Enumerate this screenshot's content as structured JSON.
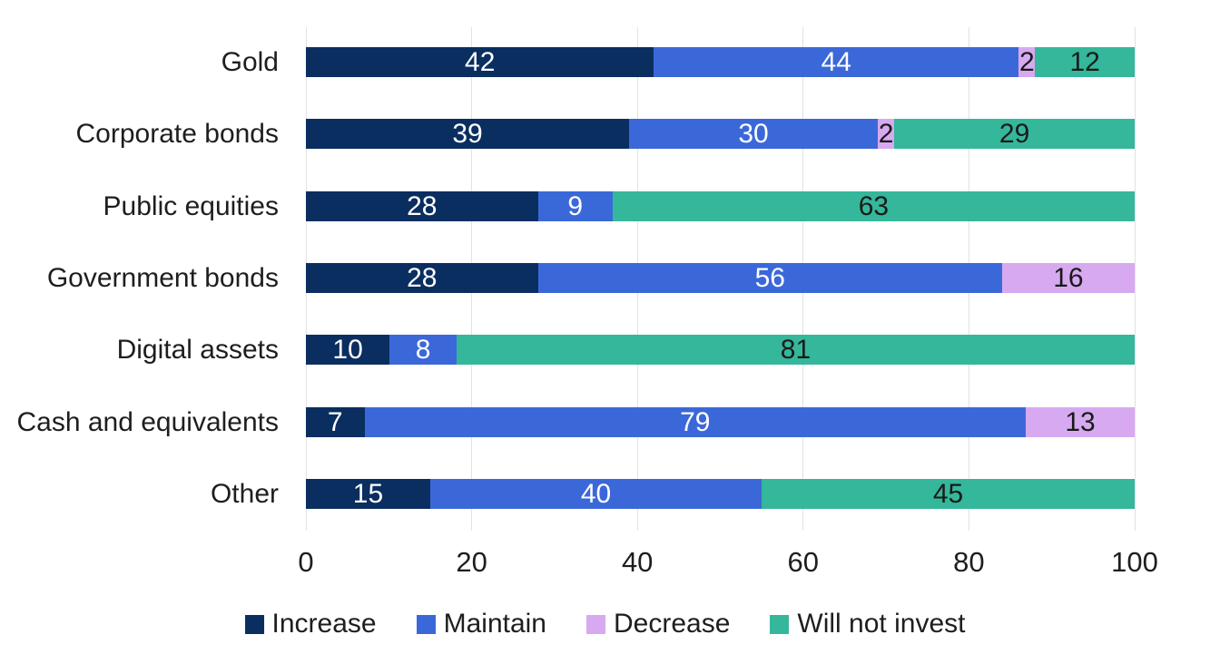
{
  "chart_data": {
    "type": "bar",
    "orientation": "horizontal",
    "stacked": true,
    "title": "",
    "xlabel": "",
    "ylabel": "",
    "xlim": [
      0,
      100
    ],
    "x_ticks": [
      "0",
      "20",
      "40",
      "60",
      "80",
      "100"
    ],
    "grid": "vertical",
    "legend_position": "bottom",
    "categories": [
      "Gold",
      "Corporate bonds",
      "Public equities",
      "Government bonds",
      "Digital assets",
      "Cash and equivalents",
      "Other"
    ],
    "series": [
      {
        "name": "Increase",
        "color": "#0b2e60",
        "label_color": "#ffffff",
        "values": [
          42,
          39,
          28,
          28,
          10,
          7,
          15
        ]
      },
      {
        "name": "Maintain",
        "color": "#3b68d9",
        "label_color": "#ffffff",
        "values": [
          44,
          30,
          9,
          56,
          8,
          79,
          40
        ]
      },
      {
        "name": "Decrease",
        "color": "#d7a9f1",
        "label_color": "#1a1a1a",
        "values": [
          2,
          2,
          0,
          16,
          0,
          13,
          0
        ]
      },
      {
        "name": "Will not invest",
        "color": "#34b79a",
        "label_color": "#1a1a1a",
        "values": [
          12,
          29,
          63,
          0,
          81,
          0,
          45
        ]
      }
    ],
    "colors": {
      "background": "#ffffff",
      "gridline": "#e2e2e2",
      "axis_text": "#1e1e1e"
    }
  }
}
